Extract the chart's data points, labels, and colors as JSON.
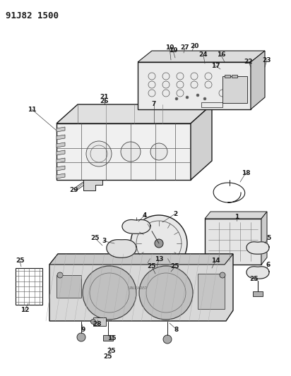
{
  "title": "91J82 1500",
  "bg_color": "#ffffff",
  "fg_color": "#1a1a1a",
  "fig_width": 4.12,
  "fig_height": 5.33,
  "dpi": 100
}
